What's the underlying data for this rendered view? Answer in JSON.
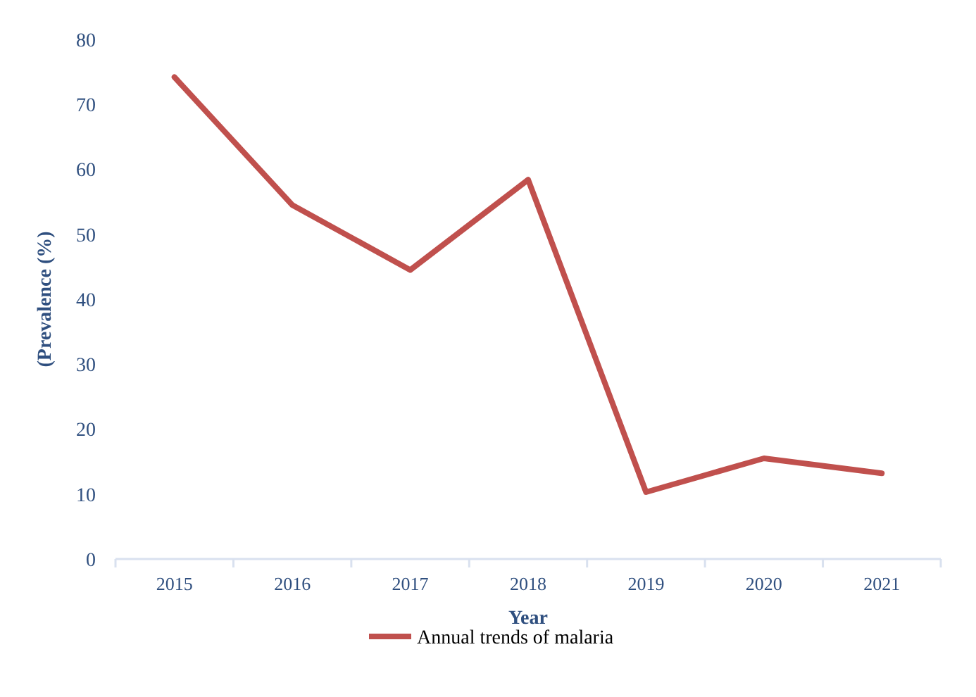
{
  "chart_data": {
    "type": "line",
    "xlabel": "Year",
    "ylabel": "(Prevalence (%)",
    "categories": [
      "2015",
      "2016",
      "2017",
      "2018",
      "2019",
      "2020",
      "2021"
    ],
    "series": [
      {
        "name": "Annual trends of malaria",
        "color": "#c0504d",
        "values": [
          74.2,
          54.5,
          44.5,
          58.4,
          10.3,
          15.5,
          13.2
        ]
      }
    ],
    "ylim": [
      0,
      80
    ],
    "yticks": [
      0,
      10,
      20,
      30,
      40,
      50,
      60,
      70,
      80
    ],
    "grid": false,
    "legend": "bottom",
    "marker": "none",
    "line_style": "solid"
  }
}
